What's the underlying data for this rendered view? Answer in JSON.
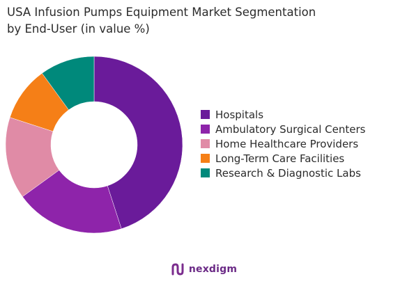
{
  "chart_data": {
    "type": "pie",
    "title_lines": [
      "USA Infusion Pumps Equipment Market Segmentation",
      "by End-User (in value %)"
    ],
    "categories": [
      "Hospitals",
      "Ambulatory Surgical Centers",
      "Home Healthcare Providers",
      "Long-Term Care Facilities",
      "Research & Diagnostic Labs"
    ],
    "values": [
      45,
      20,
      15,
      10,
      10
    ],
    "colors": [
      "#6a1b9a",
      "#8e24aa",
      "#e08ba6",
      "#f57f17",
      "#00897b"
    ],
    "legend_position": "right"
  },
  "footer": {
    "brand": "nexdigm",
    "logo_icon": "nexdigm-logo-icon"
  }
}
